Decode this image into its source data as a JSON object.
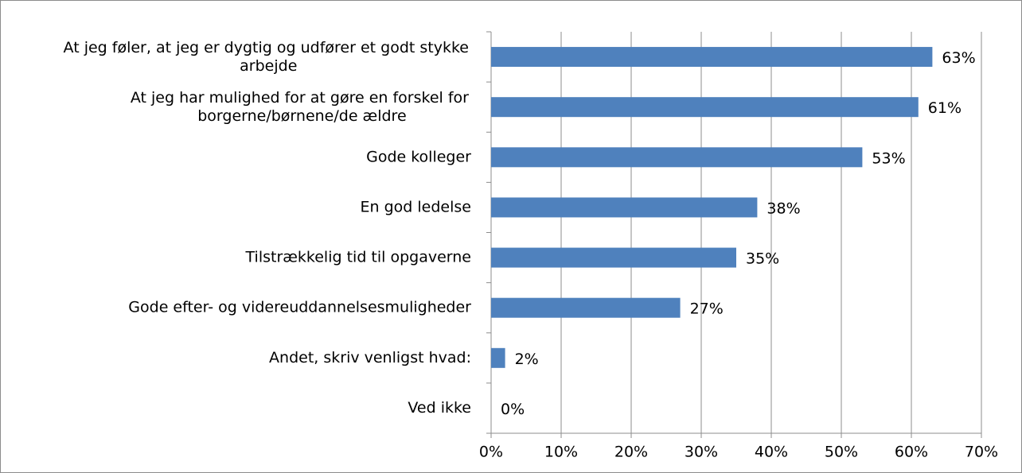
{
  "chart_data": {
    "type": "bar",
    "orientation": "horizontal",
    "categories": [
      "At jeg føler, at jeg er dygtig og udfører et godt stykke arbejde",
      "At jeg har mulighed for at gøre en forskel for borgerne/børnene/de ældre",
      "Gode kolleger",
      "En god ledelse",
      "Tilstrækkelig tid til opgaverne",
      "Gode efter- og videreuddannelsesmuligheder",
      "Andet, skriv venligst hvad:",
      "Ved ikke"
    ],
    "values": [
      63,
      61,
      53,
      38,
      35,
      27,
      2,
      0
    ],
    "value_labels": [
      "63%",
      "61%",
      "53%",
      "38%",
      "35%",
      "27%",
      "2%",
      "0%"
    ],
    "color": "#4f81bd",
    "xlim": [
      0,
      70
    ],
    "xticks": [
      {
        "value": 0,
        "label": "0%"
      },
      {
        "value": 10,
        "label": "10%"
      },
      {
        "value": 20,
        "label": "20%"
      },
      {
        "value": 30,
        "label": "30%"
      },
      {
        "value": 40,
        "label": "40%"
      },
      {
        "value": 50,
        "label": "50%"
      },
      {
        "value": 60,
        "label": "60%"
      },
      {
        "value": 70,
        "label": "70%"
      }
    ],
    "grid": true
  }
}
